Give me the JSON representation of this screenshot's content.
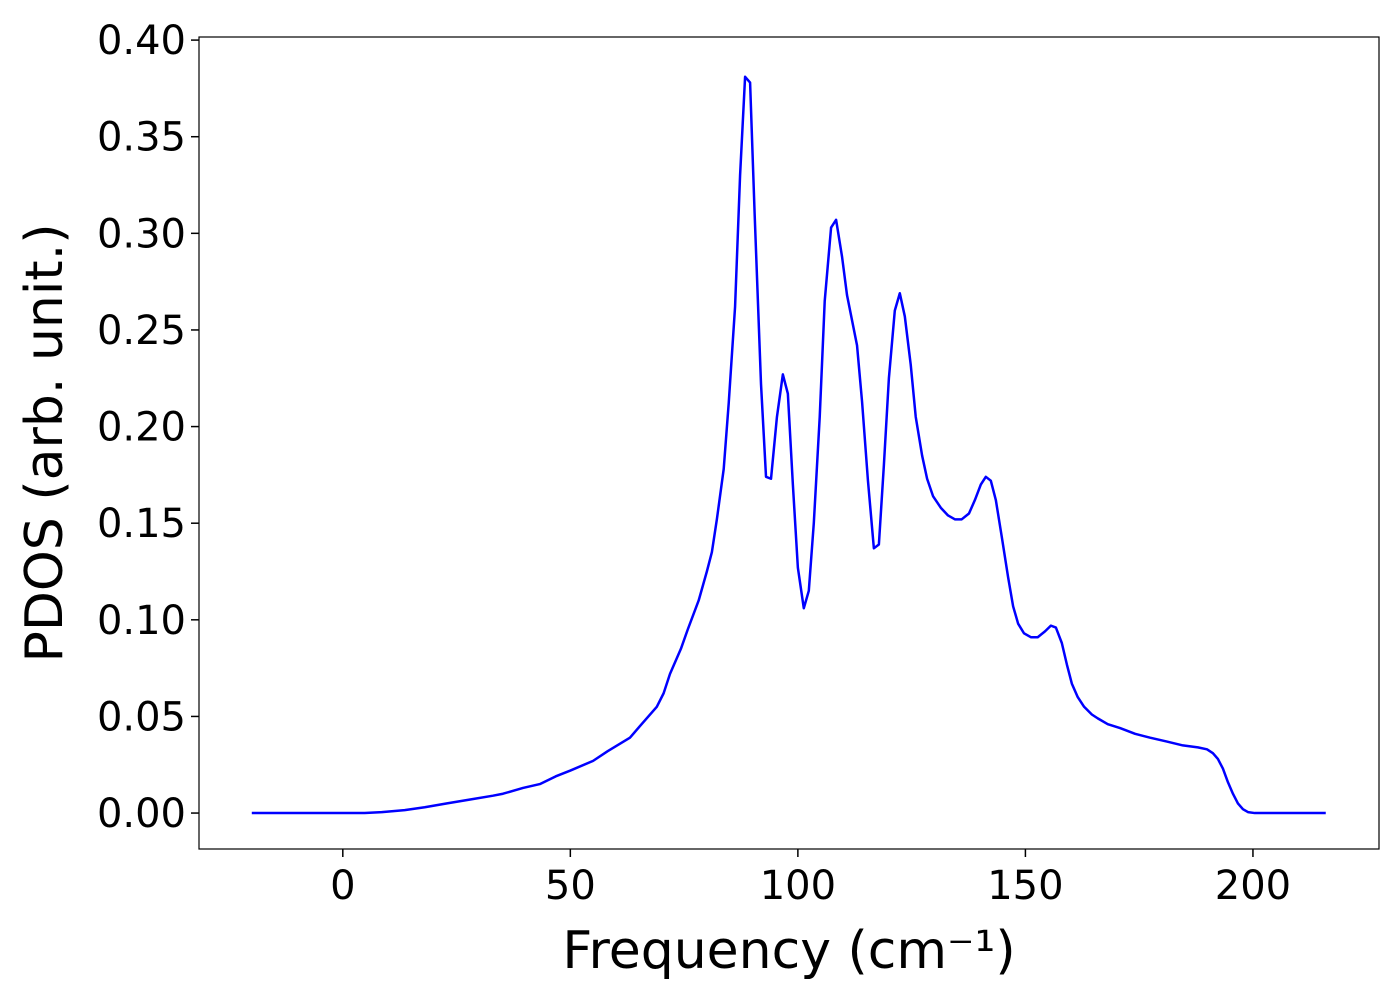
{
  "chart_data": {
    "type": "line",
    "xlabel": "Frequency (cm⁻¹)",
    "ylabel": "PDOS (arb. unit.)",
    "color": "#0000ff",
    "grid": false,
    "xlim": [
      -31.6,
      227.7
    ],
    "ylim": [
      -0.0186,
      0.4016
    ],
    "xticks": [
      0,
      50,
      100,
      150,
      200
    ],
    "yticks": [
      {
        "value": 0,
        "label": "0.00"
      },
      0.05,
      {
        "value": 0.1,
        "label": "0.10"
      },
      0.15,
      {
        "value": 0.2,
        "label": "0.20"
      },
      0.25,
      {
        "value": 0.3,
        "label": "0.30"
      },
      0.35,
      {
        "value": 0.4,
        "label": "0.40"
      }
    ],
    "x": [
      -20,
      4.8,
      8.6,
      13.6,
      18,
      22.9,
      28,
      33,
      35.2,
      39.6,
      43.3,
      46.8,
      50,
      55,
      58.2,
      63.1,
      65.3,
      69,
      70.5,
      71.9,
      74.3,
      75.8,
      78.2,
      80,
      81.1,
      82.2,
      83.7,
      84.8,
      86.2,
      87.3,
      88.4,
      89.5,
      90.5,
      91.9,
      93,
      94.1,
      95.4,
      96.7,
      97.8,
      98.9,
      100,
      101.3,
      102.4,
      103.5,
      104.8,
      105.9,
      107.3,
      108.4,
      109.7,
      110.8,
      113,
      114.1,
      115.4,
      116.7,
      117.8,
      118.9,
      120,
      121.3,
      122.4,
      123.5,
      124.8,
      125.9,
      127.3,
      128.4,
      129.7,
      131.4,
      133,
      134.5,
      136,
      137.6,
      138.9,
      140.2,
      141.3,
      142.4,
      143.5,
      144.8,
      146.2,
      147.3,
      148.4,
      149.7,
      151.2,
      152.7,
      154.3,
      155.6,
      156.7,
      158,
      159.1,
      160.2,
      161.5,
      162.9,
      164.6,
      165.9,
      168.1,
      170.8,
      174.1,
      177.4,
      181.1,
      184.6,
      187.9,
      189.9,
      191.2,
      192.3,
      193.4,
      194.5,
      195.6,
      196.7,
      197.8,
      198.9,
      200.4,
      216
    ],
    "values": [
      0,
      0,
      0.0005,
      0.0015,
      0.003,
      0.005,
      0.007,
      0.009,
      0.01,
      0.013,
      0.015,
      0.019,
      0.022,
      0.027,
      0.032,
      0.039,
      0.045,
      0.055,
      0.062,
      0.072,
      0.085,
      0.095,
      0.11,
      0.125,
      0.135,
      0.152,
      0.178,
      0.212,
      0.262,
      0.33,
      0.381,
      0.378,
      0.31,
      0.222,
      0.174,
      0.173,
      0.205,
      0.227,
      0.217,
      0.17,
      0.127,
      0.106,
      0.115,
      0.15,
      0.205,
      0.265,
      0.303,
      0.307,
      0.288,
      0.268,
      0.242,
      0.213,
      0.172,
      0.137,
      0.139,
      0.18,
      0.225,
      0.26,
      0.269,
      0.257,
      0.232,
      0.205,
      0.185,
      0.173,
      0.164,
      0.158,
      0.154,
      0.152,
      0.152,
      0.155,
      0.162,
      0.17,
      0.174,
      0.172,
      0.162,
      0.143,
      0.122,
      0.107,
      0.098,
      0.093,
      0.091,
      0.091,
      0.094,
      0.097,
      0.096,
      0.088,
      0.077,
      0.067,
      0.06,
      0.055,
      0.051,
      0.049,
      0.046,
      0.044,
      0.041,
      0.039,
      0.037,
      0.035,
      0.034,
      0.033,
      0.031,
      0.028,
      0.023,
      0.016,
      0.01,
      0.005,
      0.002,
      0.0005,
      0,
      0
    ]
  }
}
